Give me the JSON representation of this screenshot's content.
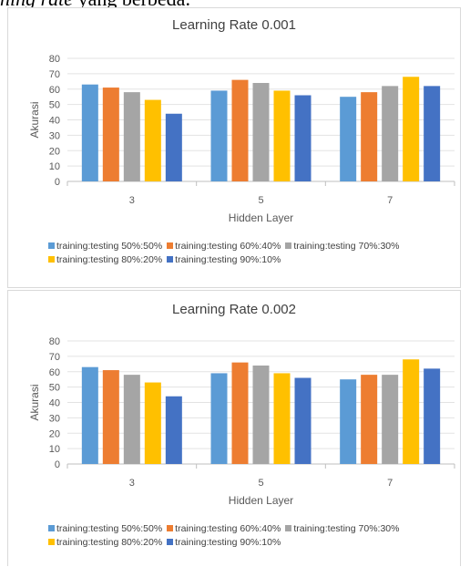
{
  "header_text": {
    "italic": "ning rate",
    "normal": " yang berbeda."
  },
  "colors": [
    "#5b9bd5",
    "#ed7d31",
    "#a5a5a5",
    "#ffc000",
    "#4472c4"
  ],
  "chart_data": [
    {
      "type": "bar",
      "title": "Learning Rate 0.001",
      "xlabel": "Hidden Layer",
      "ylabel": "Akurasi",
      "ylim": [
        0,
        80
      ],
      "yticks": [
        0,
        10,
        20,
        30,
        40,
        50,
        60,
        70,
        80
      ],
      "grid": true,
      "legend_position": "bottom",
      "categories": [
        "3",
        "5",
        "7"
      ],
      "series": [
        {
          "name": "training:testing 50%:50%",
          "values": [
            63,
            59,
            55
          ]
        },
        {
          "name": "training:testing 60%:40%",
          "values": [
            61,
            66,
            58
          ]
        },
        {
          "name": "training:testing 70%:30%",
          "values": [
            58,
            64,
            62
          ]
        },
        {
          "name": "training:testing 80%:20%",
          "values": [
            53,
            59,
            68
          ]
        },
        {
          "name": "training:testing 90%:10%",
          "values": [
            44,
            56,
            62
          ]
        }
      ]
    },
    {
      "type": "bar",
      "title": "Learning Rate 0.002",
      "xlabel": "Hidden Layer",
      "ylabel": "Akurasi",
      "ylim": [
        0,
        80
      ],
      "yticks": [
        0,
        10,
        20,
        30,
        40,
        50,
        60,
        70,
        80
      ],
      "grid": true,
      "legend_position": "bottom",
      "categories": [
        "3",
        "5",
        "7"
      ],
      "series": [
        {
          "name": "training:testing 50%:50%",
          "values": [
            63,
            59,
            55
          ]
        },
        {
          "name": "training:testing 60%:40%",
          "values": [
            61,
            66,
            58
          ]
        },
        {
          "name": "training:testing 70%:30%",
          "values": [
            58,
            64,
            58
          ]
        },
        {
          "name": "training:testing 80%:20%",
          "values": [
            53,
            59,
            68
          ]
        },
        {
          "name": "training:testing 90%:10%",
          "values": [
            44,
            56,
            62
          ]
        }
      ]
    }
  ]
}
